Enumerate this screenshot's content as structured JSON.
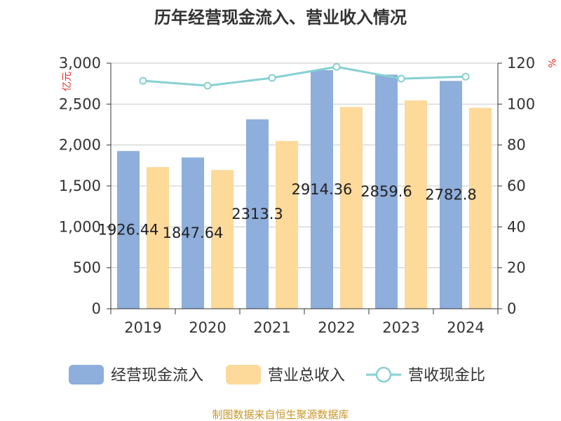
{
  "chart_data": {
    "type": "bar",
    "title": "历年经营现金流入、营业收入情况",
    "categories": [
      "2019",
      "2020",
      "2021",
      "2022",
      "2023",
      "2024"
    ],
    "series": [
      {
        "name": "经营现金流入",
        "type": "bar",
        "axis": "left",
        "color": "#8eaedb",
        "values": [
          1926.44,
          1847.64,
          2313.3,
          2914.36,
          2859.6,
          2782.8
        ],
        "labels": [
          "1926.44",
          "1847.64",
          "2313.3",
          "2914.36",
          "2859.6",
          "2782.8"
        ]
      },
      {
        "name": "营业总收入",
        "type": "bar",
        "axis": "left",
        "color": "#fdd99a",
        "values": [
          1730,
          1695,
          2050,
          2465,
          2545,
          2455
        ]
      },
      {
        "name": "营收现金比",
        "type": "line",
        "axis": "right",
        "color": "#86d0d2",
        "values": [
          111.4,
          109,
          112.8,
          118.2,
          112.4,
          113.4
        ]
      }
    ],
    "y_left": {
      "unit": "亿元",
      "min": 0,
      "max": 3000,
      "ticks": [
        0,
        500,
        1000,
        1500,
        2000,
        2500,
        3000
      ],
      "tick_labels": [
        "0",
        "500",
        "1,000",
        "1,500",
        "2,000",
        "2,500",
        "3,000"
      ]
    },
    "y_right": {
      "unit": "%",
      "min": 0,
      "max": 120,
      "ticks": [
        0,
        20,
        40,
        60,
        80,
        100,
        120
      ],
      "tick_labels": [
        "0",
        "20",
        "40",
        "60",
        "80",
        "100",
        "120"
      ]
    },
    "grid": true,
    "legend": "bottom"
  },
  "source": "制图数据来自恒生聚源数据库",
  "colors": {
    "axis": "#333333",
    "grid": "#c8c8c8",
    "unit": "#e0302a",
    "source": "#c9962a"
  }
}
